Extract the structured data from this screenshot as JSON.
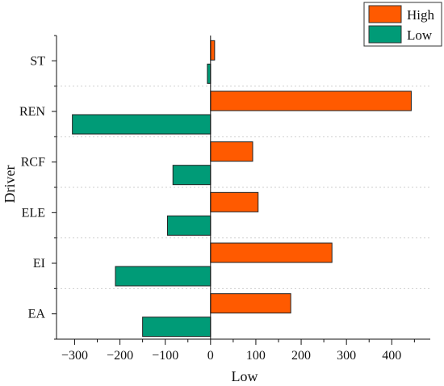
{
  "chart_data": {
    "type": "bar",
    "orientation": "horizontal",
    "categories": [
      "EA",
      "EI",
      "ELE",
      "RCF",
      "REN",
      "ST"
    ],
    "series": [
      {
        "name": "High",
        "color": "#FF5A00",
        "values": [
          177,
          268,
          105,
          93,
          443,
          9
        ]
      },
      {
        "name": "Low",
        "color": "#009B77",
        "values": [
          -150,
          -210,
          -95,
          -83,
          -305,
          -7
        ]
      }
    ],
    "xlabel": "Low",
    "ylabel": "Driver",
    "xlim": [
      -340,
      485
    ],
    "xticks": [
      -300,
      -200,
      -100,
      0,
      100,
      200,
      300,
      400
    ],
    "grid": "horizontal dashed",
    "legend_position": "top-right"
  }
}
